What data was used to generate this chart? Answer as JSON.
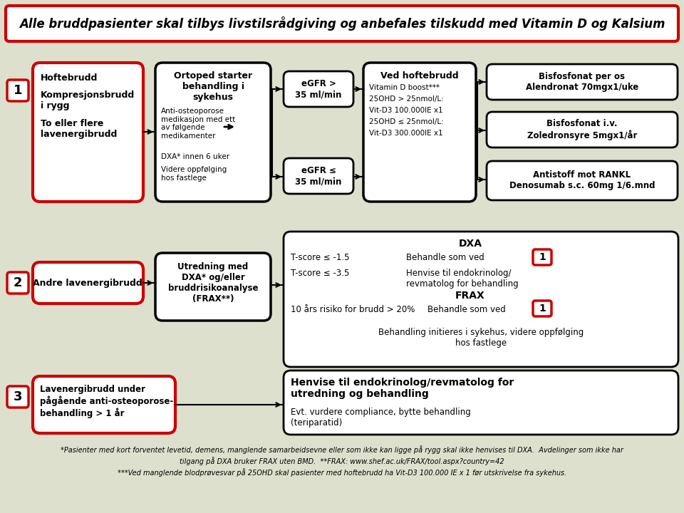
{
  "bg_color": "#dde0cc",
  "title": "Alle bruddpasienter skal tilbys livstilsrådgiving og anbefales tilskudd med Vitamin D og Kalsium",
  "red": "#cc0000",
  "black": "#000000",
  "white": "#ffffff",
  "footnote1": "*Pasienter med kort forventet levetid, demens, manglende samarbeidsevne eller som ikke kan ligge på rygg skal ikke henvises til DXA.  Avdelinger som ikke har",
  "footnote2": "tilgang på DXA bruker FRAX uten BMD.  **FRAX: www.shef.ac.uk/FRAX/tool.aspx?country=42",
  "footnote2_url": "www.shef.ac.uk/FRAX/tool.aspx?country=42",
  "footnote3": "***Ved manglende blodprøvesvar på 25OHD skal pasienter med hoftebrudd ha Vit-D3 100.000 IE x 1 før utskrivelse fra sykehus."
}
